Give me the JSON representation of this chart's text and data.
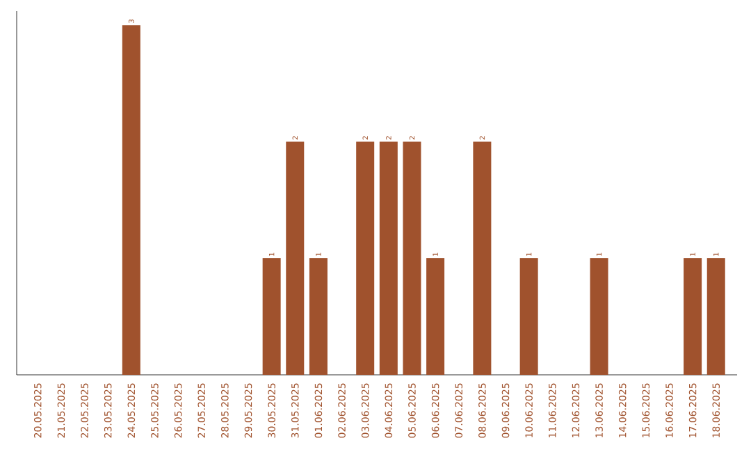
{
  "chart_data": {
    "type": "bar",
    "color": "#a0522d",
    "categories": [
      "20.05.2025",
      "21.05.2025",
      "22.05.2025",
      "23.05.2025",
      "24.05.2025",
      "25.05.2025",
      "26.05.2025",
      "27.05.2025",
      "28.05.2025",
      "29.05.2025",
      "30.05.2025",
      "31.05.2025",
      "01.06.2025",
      "02.06.2025",
      "03.06.2025",
      "04.06.2025",
      "05.06.2025",
      "06.06.2025",
      "07.06.2025",
      "08.06.2025",
      "09.06.2025",
      "10.06.2025",
      "11.06.2025",
      "12.06.2025",
      "13.06.2025",
      "14.06.2025",
      "15.06.2025",
      "16.06.2025",
      "17.06.2025",
      "18.06.2025"
    ],
    "values": [
      0,
      0,
      0,
      0,
      3,
      0,
      0,
      0,
      0,
      0,
      1,
      2,
      1,
      0,
      2,
      2,
      2,
      1,
      0,
      2,
      0,
      1,
      0,
      0,
      1,
      0,
      0,
      0,
      1,
      1
    ],
    "value_labels": [
      null,
      null,
      null,
      null,
      "3",
      null,
      null,
      null,
      null,
      null,
      "1",
      "2",
      "1",
      null,
      "2",
      "2",
      "2",
      "1",
      null,
      "2",
      null,
      "1",
      null,
      null,
      "1",
      null,
      null,
      null,
      "1",
      "1"
    ]
  }
}
